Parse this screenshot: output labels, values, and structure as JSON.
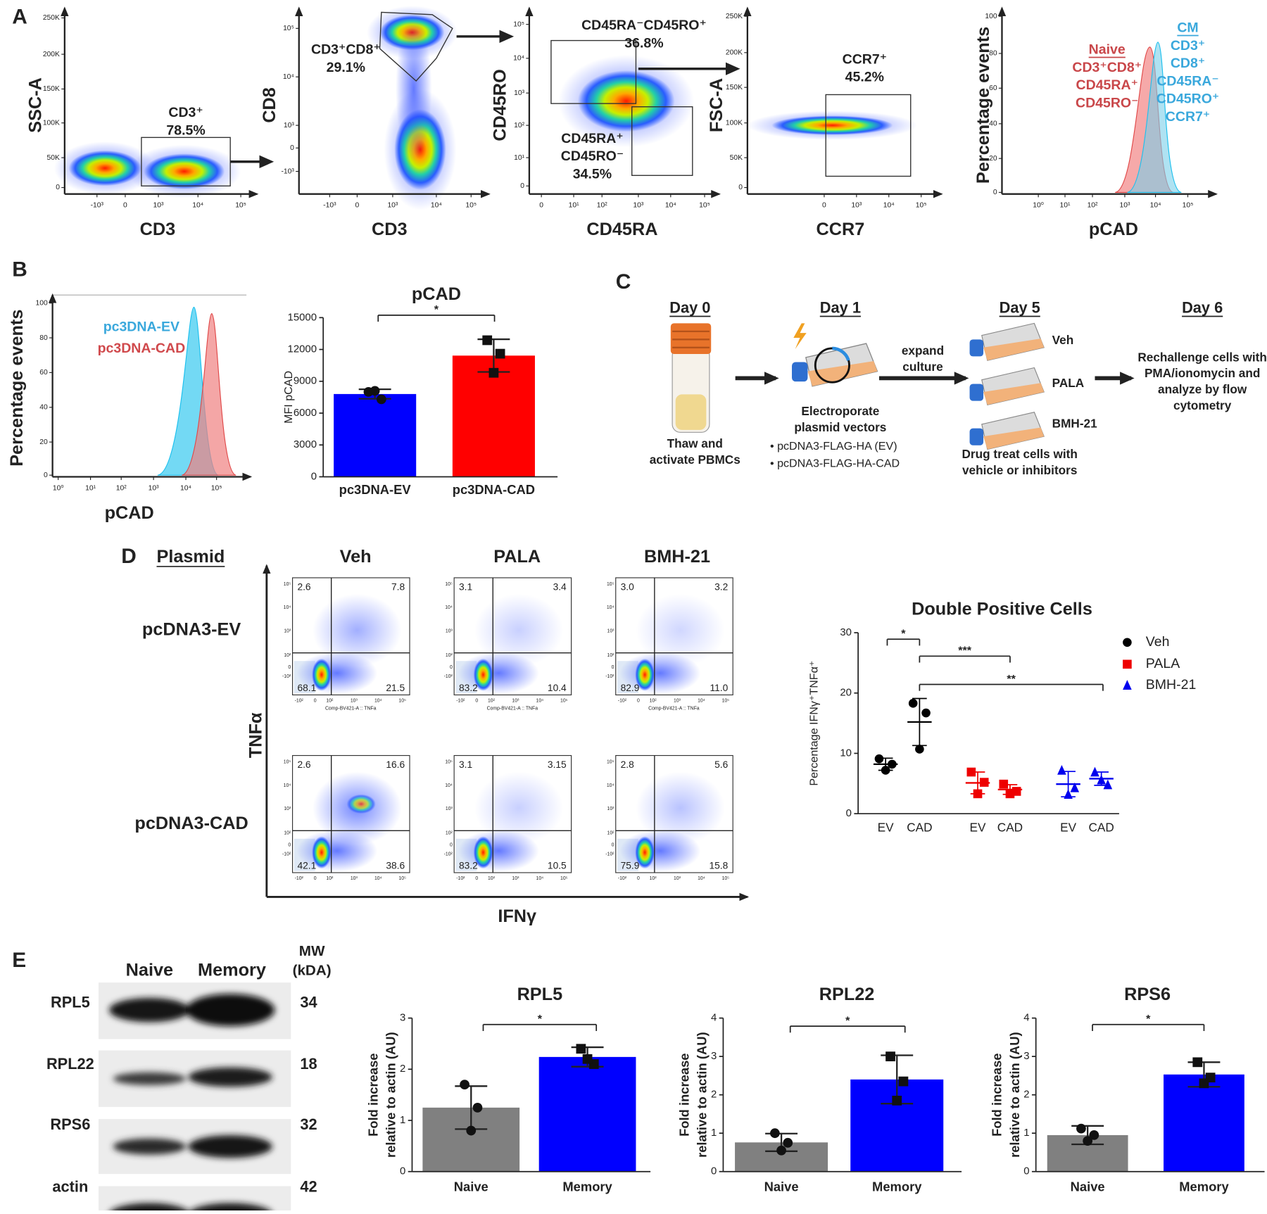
{
  "panel_labels": {
    "a": "A",
    "b": "B",
    "c": "C",
    "d": "D",
    "e": "E"
  },
  "panel_a": {
    "plots": [
      {
        "y_label": "SSC-A",
        "x_label": "CD3",
        "y_ticks": [
          "250K",
          "200K",
          "150K",
          "100K",
          "50K",
          "0"
        ],
        "x_ticks": [
          "-10³",
          "0",
          "10³",
          "10⁴",
          "10⁵"
        ],
        "gate_labels": [
          "CD3⁺",
          "78.5%"
        ]
      },
      {
        "y_label": "CD8",
        "x_label": "CD3",
        "y_ticks": [
          "10⁵",
          "10⁴",
          "10³",
          "0",
          "-10³"
        ],
        "x_ticks": [
          "-10³",
          "0",
          "10³",
          "10⁴",
          "10⁵"
        ],
        "gate_labels": [
          "CD3⁺CD8⁺",
          "29.1%"
        ]
      },
      {
        "y_label": "CD45RO",
        "x_label": "CD45RA",
        "y_ticks": [
          "10⁵",
          "10⁴",
          "10³",
          "10²",
          "10¹",
          "0"
        ],
        "x_ticks": [
          "0",
          "10¹",
          "10²",
          "10³",
          "10⁴",
          "10⁵"
        ],
        "gate_labels": [
          "CD45RA⁻CD45RO⁺",
          "36.8%",
          "CD45RA⁺",
          "CD45RO⁻",
          "34.5%"
        ]
      },
      {
        "y_label": "FSC-A",
        "x_label": "CCR7",
        "y_ticks": [
          "250K",
          "200K",
          "150K",
          "100K",
          "50K",
          "0"
        ],
        "x_ticks": [
          "0",
          "10³",
          "10⁴",
          "10⁵"
        ],
        "gate_labels": [
          "CCR7⁺",
          "45.2%"
        ]
      },
      {
        "y_label": "Percentage events",
        "x_label": "pCAD",
        "y_ticks": [
          "100",
          "80",
          "60",
          "40",
          "20",
          "0"
        ],
        "x_ticks": [
          "10⁰",
          "10¹",
          "10²",
          "10³",
          "10⁴",
          "10⁵"
        ],
        "naive_labels": [
          "Naive",
          "CD3⁺CD8⁺",
          "CD45RA⁺",
          "CD45RO⁻"
        ],
        "cm_labels": [
          "CM",
          "CD3⁺",
          "CD8⁺",
          "CD45RA⁻",
          "CD45RO⁺",
          "CCR7⁺"
        ]
      }
    ]
  },
  "panel_b": {
    "histogram": {
      "y_label": "Percentage events",
      "x_label": "pCAD",
      "y_ticks": [
        "100",
        "80",
        "60",
        "40",
        "20",
        "0"
      ],
      "x_ticks": [
        "10⁰",
        "10¹",
        "10²",
        "10³",
        "10⁴",
        "10⁵"
      ],
      "legend": [
        "pc3DNA-EV",
        "pc3DNA-CAD"
      ]
    }
  },
  "panel_c": {
    "steps": [
      {
        "day": "Day 0",
        "caption": [
          "Thaw and",
          "activate PBMCs"
        ]
      },
      {
        "day": "Day 1",
        "caption": [
          "Electroporate",
          "plasmid vectors"
        ],
        "bullets": [
          "• pcDNA3-FLAG-HA (EV)",
          "• pcDNA3-FLAG-HA-CAD"
        ]
      },
      {
        "day": "Day 5",
        "treatments": [
          "Veh",
          "PALA",
          "BMH-21"
        ],
        "caption": [
          "Drug treat cells with",
          "vehicle or inhibitors"
        ]
      },
      {
        "day": "Day 6",
        "caption": [
          "Rechallenge cells with",
          "PMA/ionomycin and",
          "analyze by flow",
          "cytometry"
        ]
      }
    ],
    "arrow_label": [
      "expand",
      "culture"
    ]
  },
  "panel_d": {
    "plasmid_header": "Plasmid",
    "columns": [
      "Veh",
      "PALA",
      "BMH-21"
    ],
    "rows": [
      "pcDNA3-EV",
      "pcDNA3-CAD"
    ],
    "y_label": "TNFα",
    "x_label": "IFNγ",
    "y_ticks": [
      "10⁵",
      "10⁴",
      "10³",
      "10²",
      "0",
      "-10²"
    ],
    "x_ticks": [
      "-10²",
      "0",
      "10²",
      "10³",
      "10⁴",
      "10⁵"
    ],
    "x_axis_caption": "Comp-BV421-A :: TNFa",
    "quadrants": [
      [
        [
          "2.6",
          "7.8",
          "68.1",
          "21.5"
        ],
        [
          "3.1",
          "3.4",
          "83.2",
          "10.4"
        ],
        [
          "3.0",
          "3.2",
          "82.9",
          "11.0"
        ]
      ],
      [
        [
          "2.6",
          "16.6",
          "42.1",
          "38.6"
        ],
        [
          "3.1",
          "3.15",
          "83.2",
          "10.5"
        ],
        [
          "2.8",
          "5.6",
          "75.9",
          "15.8"
        ]
      ]
    ]
  },
  "panel_e": {
    "columns": [
      "Naive",
      "Memory"
    ],
    "mw_header": [
      "MW",
      "(kDA)"
    ],
    "rows": [
      {
        "protein": "RPL5",
        "mw": 34
      },
      {
        "protein": "RPL22",
        "mw": 18
      },
      {
        "protein": "RPS6",
        "mw": 32
      },
      {
        "protein": "actin",
        "mw": 42
      }
    ]
  },
  "chart_data": [
    {
      "type": "bar",
      "title": "pCAD",
      "y_label": "MFI pCAD",
      "categories": [
        "pc3DNA-EV",
        "pc3DNA-CAD"
      ],
      "values": [
        7800,
        11420
      ],
      "errors": [
        450,
        1540
      ],
      "points": [
        [
          8000,
          7300,
          8100
        ],
        [
          12870,
          11600,
          9800
        ]
      ],
      "markers": [
        "circle",
        "square"
      ],
      "colors": [
        "#0000ff",
        "#ff0000"
      ],
      "ylim": [
        0,
        15000
      ],
      "yticks": [
        0,
        3000,
        6000,
        9000,
        12000,
        15000
      ],
      "annotations": [
        "*"
      ]
    },
    {
      "type": "dot",
      "title": "Double Positive Cells",
      "y_label": "Percentage IFNγ⁺TNFα⁺",
      "categories": [
        "EV",
        "CAD",
        "EV",
        "CAD",
        "EV",
        "CAD"
      ],
      "series": [
        {
          "name": "Veh",
          "color": "#000000",
          "marker": "circle",
          "values": [
            [
              9.1,
              8.2,
              7.2
            ],
            [
              18.3,
              16.7,
              10.7
            ],
            null,
            null,
            null,
            null
          ],
          "means": [
            8.2,
            15.2,
            null,
            null,
            null,
            null
          ],
          "errors": [
            1.0,
            3.9,
            null,
            null,
            null,
            null
          ]
        },
        {
          "name": "PALA",
          "color": "#ee0000",
          "marker": "square",
          "values": [
            null,
            null,
            [
              6.9,
              5.2,
              3.3
            ],
            [
              4.9,
              3.7,
              3.3
            ],
            null,
            null
          ],
          "means": [
            null,
            null,
            5.1,
            4.0,
            null,
            null
          ],
          "errors": [
            null,
            null,
            1.8,
            0.8,
            null,
            null
          ]
        },
        {
          "name": "BMH-21",
          "color": "#0000ee",
          "marker": "triangle",
          "values": [
            null,
            null,
            null,
            null,
            [
              7.2,
              4.3,
              3.2
            ],
            [
              6.9,
              4.8,
              5.6
            ]
          ],
          "means": [
            null,
            null,
            null,
            null,
            4.9,
            5.8
          ],
          "errors": [
            null,
            null,
            null,
            null,
            2.1,
            1.1
          ]
        }
      ],
      "ylim": [
        0,
        30
      ],
      "yticks": [
        0,
        10,
        20,
        30
      ],
      "annotations": [
        "*",
        "***",
        "**"
      ],
      "legend": "top-right"
    },
    {
      "type": "bar",
      "title": "RPL5",
      "y_label": [
        "Fold increase",
        "relative to actin (AU)"
      ],
      "categories": [
        "Naive",
        "Memory"
      ],
      "values": [
        1.25,
        2.24
      ],
      "errors": [
        0.42,
        0.19
      ],
      "points": [
        [
          1.7,
          1.25,
          0.8
        ],
        [
          2.4,
          2.1,
          2.2
        ]
      ],
      "markers": [
        "circle",
        "square"
      ],
      "colors": [
        "#808080",
        "#0000ff"
      ],
      "ylim": [
        0,
        3
      ],
      "yticks": [
        0,
        1,
        2,
        3
      ],
      "annotations": [
        "*"
      ]
    },
    {
      "type": "bar",
      "title": "RPL22",
      "y_label": [
        "Fold increase",
        "relative to actin (AU)"
      ],
      "categories": [
        "Naive",
        "Memory"
      ],
      "values": [
        0.76,
        2.4
      ],
      "errors": [
        0.23,
        0.63
      ],
      "points": [
        [
          1.0,
          0.75,
          0.55
        ],
        [
          3.0,
          2.35,
          1.85
        ]
      ],
      "markers": [
        "circle",
        "square"
      ],
      "colors": [
        "#808080",
        "#0000ff"
      ],
      "ylim": [
        0,
        4
      ],
      "yticks": [
        0,
        1,
        2,
        3,
        4
      ],
      "annotations": [
        "*"
      ]
    },
    {
      "type": "bar",
      "title": "RPS6",
      "y_label": [
        "Fold increase",
        "relative to actin (AU)"
      ],
      "categories": [
        "Naive",
        "Memory"
      ],
      "values": [
        0.95,
        2.53
      ],
      "errors": [
        0.24,
        0.32
      ],
      "points": [
        [
          1.12,
          0.95,
          0.8
        ],
        [
          2.85,
          2.45,
          2.3
        ]
      ],
      "markers": [
        "circle",
        "square"
      ],
      "colors": [
        "#808080",
        "#0000ff"
      ],
      "ylim": [
        0,
        4
      ],
      "yticks": [
        0,
        1,
        2,
        3,
        4
      ],
      "annotations": [
        "*"
      ]
    }
  ]
}
